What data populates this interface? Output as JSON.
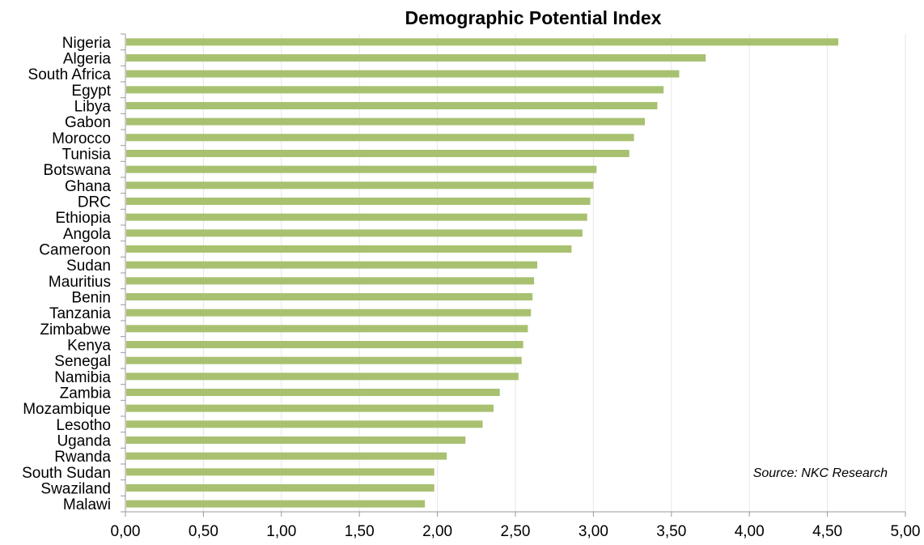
{
  "chart_data": {
    "type": "bar",
    "orientation": "horizontal",
    "title": "Demographic Potential Index",
    "annotation": "Source: NKC Research",
    "categories": [
      "Nigeria",
      "Algeria",
      "South Africa",
      "Egypt",
      "Libya",
      "Gabon",
      "Morocco",
      "Tunisia",
      "Botswana",
      "Ghana",
      "DRC",
      "Ethiopia",
      "Angola",
      "Cameroon",
      "Sudan",
      "Mauritius",
      "Benin",
      "Tanzania",
      "Zimbabwe",
      "Kenya",
      "Senegal",
      "Namibia",
      "Zambia",
      "Mozambique",
      "Lesotho",
      "Uganda",
      "Rwanda",
      "South Sudan",
      "Swaziland",
      "Malawi"
    ],
    "values": [
      4.57,
      3.72,
      3.55,
      3.45,
      3.41,
      3.33,
      3.26,
      3.23,
      3.02,
      3.0,
      2.98,
      2.96,
      2.93,
      2.86,
      2.64,
      2.62,
      2.61,
      2.6,
      2.58,
      2.55,
      2.54,
      2.52,
      2.4,
      2.36,
      2.29,
      2.18,
      2.06,
      1.98,
      1.98,
      1.92
    ],
    "xlim": [
      0,
      5
    ],
    "xticks": [
      0,
      0.5,
      1,
      1.5,
      2,
      2.5,
      3,
      3.5,
      4,
      4.5,
      5
    ],
    "xtick_labels": [
      "0,00",
      "0,50",
      "1,00",
      "1,50",
      "2,00",
      "2,50",
      "3,00",
      "3,50",
      "4,00",
      "4,50",
      "5,00"
    ],
    "grid": "vertical",
    "bar_color": "#a8c170",
    "grid_color": "#e6e6e6",
    "axis_color": "#999999"
  }
}
